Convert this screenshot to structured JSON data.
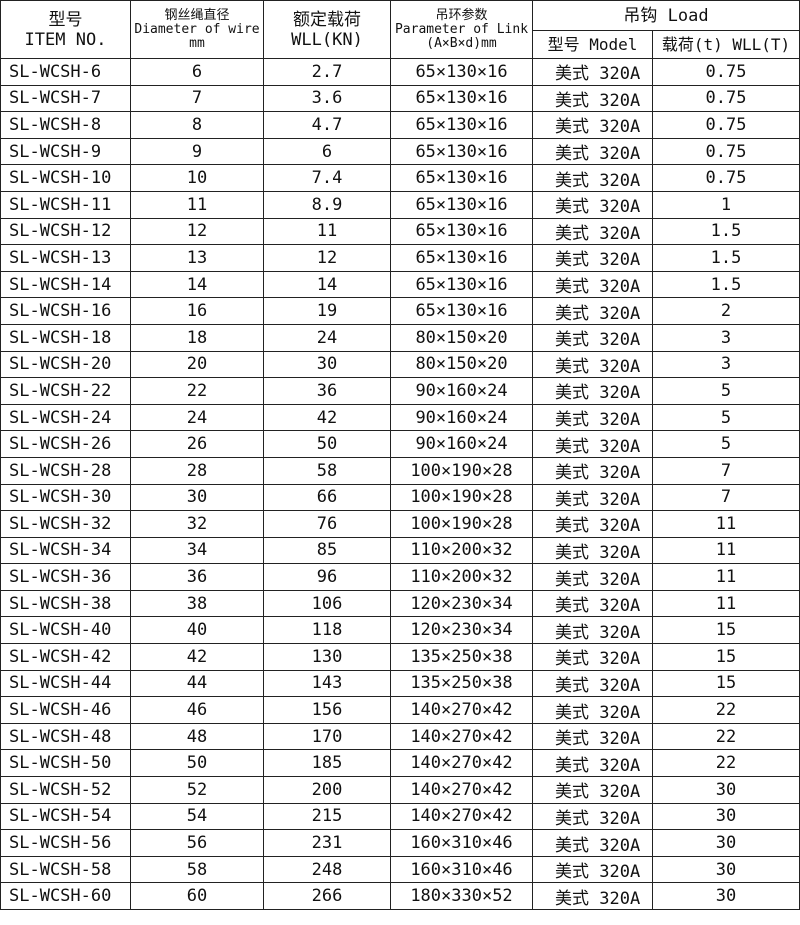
{
  "headers": {
    "item": [
      "型号",
      "ITEM NO."
    ],
    "diameter": [
      "钢丝绳直径",
      "Diameter of wire",
      "mm"
    ],
    "wll": [
      "额定载荷",
      "WLL(KN)"
    ],
    "link": [
      "吊环参数",
      "Parameter of Link",
      "(A×B×d)mm"
    ],
    "load": "吊钩 Load",
    "model": "型号 Model",
    "load_wll": "载荷(t) WLL(T)"
  },
  "rows": [
    [
      "SL-WCSH-6",
      "6",
      "2.7",
      "65×130×16",
      "美式 320A",
      "0.75"
    ],
    [
      "SL-WCSH-7",
      "7",
      "3.6",
      "65×130×16",
      "美式 320A",
      "0.75"
    ],
    [
      "SL-WCSH-8",
      "8",
      "4.7",
      "65×130×16",
      "美式 320A",
      "0.75"
    ],
    [
      "SL-WCSH-9",
      "9",
      "6",
      "65×130×16",
      "美式 320A",
      "0.75"
    ],
    [
      "SL-WCSH-10",
      "10",
      "7.4",
      "65×130×16",
      "美式 320A",
      "0.75"
    ],
    [
      "SL-WCSH-11",
      "11",
      "8.9",
      "65×130×16",
      "美式 320A",
      "1"
    ],
    [
      "SL-WCSH-12",
      "12",
      "11",
      "65×130×16",
      "美式 320A",
      "1.5"
    ],
    [
      "SL-WCSH-13",
      "13",
      "12",
      "65×130×16",
      "美式 320A",
      "1.5"
    ],
    [
      "SL-WCSH-14",
      "14",
      "14",
      "65×130×16",
      "美式 320A",
      "1.5"
    ],
    [
      "SL-WCSH-16",
      "16",
      "19",
      "65×130×16",
      "美式 320A",
      "2"
    ],
    [
      "SL-WCSH-18",
      "18",
      "24",
      "80×150×20",
      "美式 320A",
      "3"
    ],
    [
      "SL-WCSH-20",
      "20",
      "30",
      "80×150×20",
      "美式 320A",
      "3"
    ],
    [
      "SL-WCSH-22",
      "22",
      "36",
      "90×160×24",
      "美式 320A",
      "5"
    ],
    [
      "SL-WCSH-24",
      "24",
      "42",
      "90×160×24",
      "美式 320A",
      "5"
    ],
    [
      "SL-WCSH-26",
      "26",
      "50",
      "90×160×24",
      "美式 320A",
      "5"
    ],
    [
      "SL-WCSH-28",
      "28",
      "58",
      "100×190×28",
      "美式 320A",
      "7"
    ],
    [
      "SL-WCSH-30",
      "30",
      "66",
      "100×190×28",
      "美式 320A",
      "7"
    ],
    [
      "SL-WCSH-32",
      "32",
      "76",
      "100×190×28",
      "美式 320A",
      "11"
    ],
    [
      "SL-WCSH-34",
      "34",
      "85",
      "110×200×32",
      "美式 320A",
      "11"
    ],
    [
      "SL-WCSH-36",
      "36",
      "96",
      "110×200×32",
      "美式 320A",
      "11"
    ],
    [
      "SL-WCSH-38",
      "38",
      "106",
      "120×230×34",
      "美式 320A",
      "11"
    ],
    [
      "SL-WCSH-40",
      "40",
      "118",
      "120×230×34",
      "美式 320A",
      "15"
    ],
    [
      "SL-WCSH-42",
      "42",
      "130",
      "135×250×38",
      "美式 320A",
      "15"
    ],
    [
      "SL-WCSH-44",
      "44",
      "143",
      "135×250×38",
      "美式 320A",
      "15"
    ],
    [
      "SL-WCSH-46",
      "46",
      "156",
      "140×270×42",
      "美式 320A",
      "22"
    ],
    [
      "SL-WCSH-48",
      "48",
      "170",
      "140×270×42",
      "美式 320A",
      "22"
    ],
    [
      "SL-WCSH-50",
      "50",
      "185",
      "140×270×42",
      "美式 320A",
      "22"
    ],
    [
      "SL-WCSH-52",
      "52",
      "200",
      "140×270×42",
      "美式 320A",
      "30"
    ],
    [
      "SL-WCSH-54",
      "54",
      "215",
      "140×270×42",
      "美式 320A",
      "30"
    ],
    [
      "SL-WCSH-56",
      "56",
      "231",
      "160×310×46",
      "美式 320A",
      "30"
    ],
    [
      "SL-WCSH-58",
      "58",
      "248",
      "160×310×46",
      "美式 320A",
      "30"
    ],
    [
      "SL-WCSH-60",
      "60",
      "266",
      "180×330×52",
      "美式 320A",
      "30"
    ]
  ]
}
